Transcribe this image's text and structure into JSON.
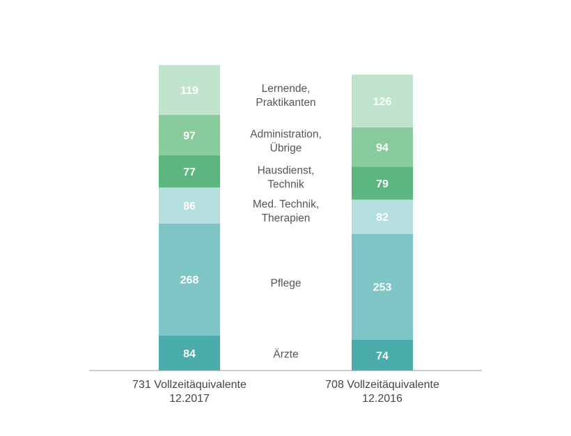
{
  "chart_data": {
    "type": "bar",
    "stacked": true,
    "categories": [
      [
        "731 Vollzeitäquivalente",
        "12.2017"
      ],
      [
        "708 Vollzeitäquivalente",
        "12.2016"
      ]
    ],
    "series": [
      {
        "name": [
          "Ärzte"
        ],
        "values": [
          84,
          74
        ],
        "color": "#4aacab"
      },
      {
        "name": [
          "Pflege"
        ],
        "values": [
          268,
          253
        ],
        "color": "#80c5c5"
      },
      {
        "name": [
          "Med. Technik,",
          "Therapien"
        ],
        "values": [
          86,
          82
        ],
        "color": "#b5dedf"
      },
      {
        "name": [
          "Hausdienst,",
          "Technik"
        ],
        "values": [
          77,
          79
        ],
        "color": "#5bb680"
      },
      {
        "name": [
          "Administration,",
          "Übrige"
        ],
        "values": [
          97,
          94
        ],
        "color": "#88cc9e"
      },
      {
        "name": [
          "Lernende,",
          "Praktikanten"
        ],
        "values": [
          119,
          126
        ],
        "color": "#bfe3cc"
      }
    ],
    "title": "",
    "xlabel": "",
    "ylabel": "",
    "grid": false,
    "legend": "between bars"
  }
}
